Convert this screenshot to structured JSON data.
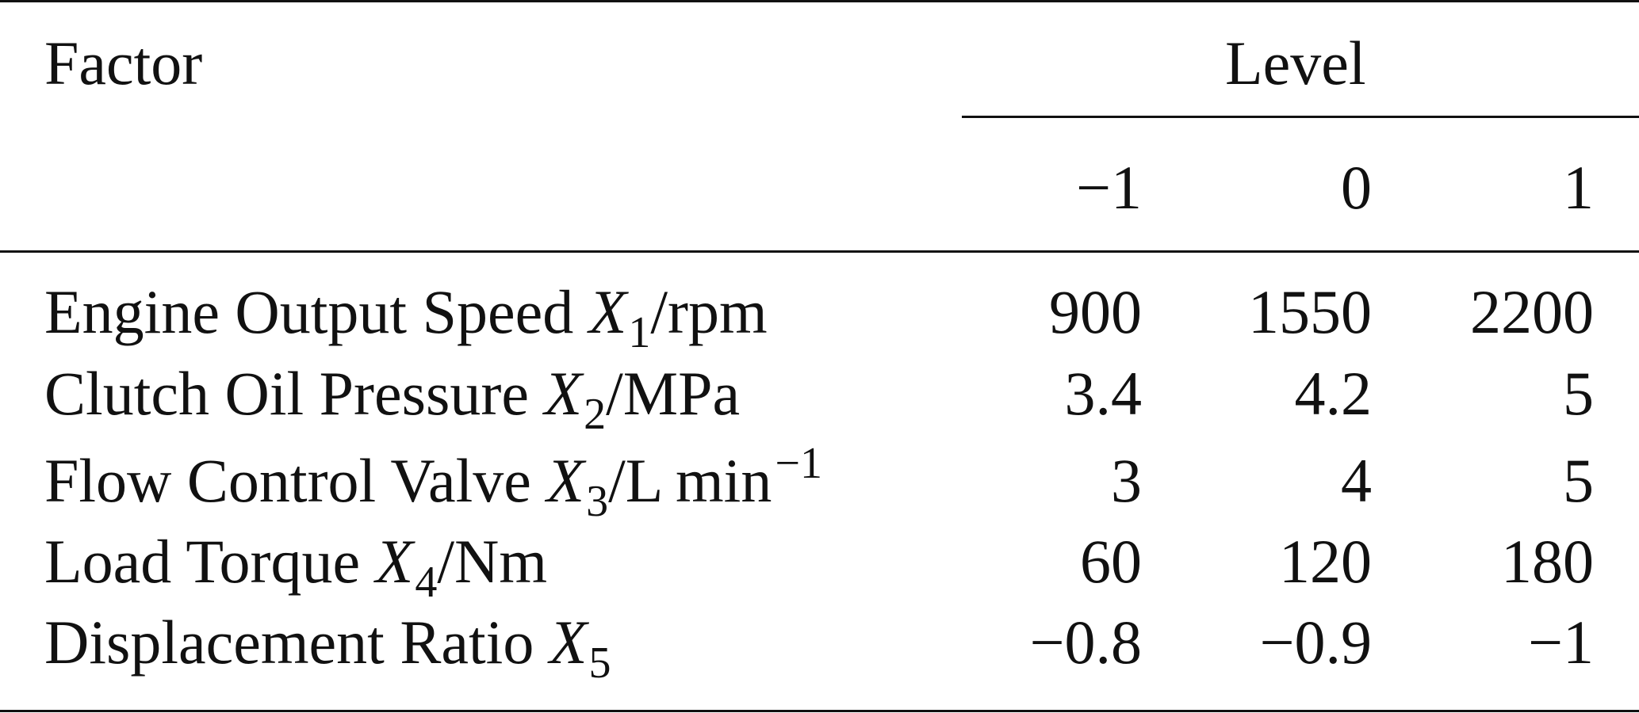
{
  "table": {
    "header": {
      "factor_label": "Factor",
      "level_label": "Level",
      "levels": [
        "−1",
        "0",
        "1"
      ]
    },
    "rows": [
      {
        "name": "Engine Output Speed",
        "var": "X",
        "sub": "1",
        "unit": "/rpm",
        "unit_sup": "",
        "values": [
          "900",
          "1550",
          "2200"
        ]
      },
      {
        "name": "Clutch Oil Pressure",
        "var": "X",
        "sub": "2",
        "unit": "/MPa",
        "unit_sup": "",
        "values": [
          "3.4",
          "4.2",
          "5"
        ]
      },
      {
        "name": "Flow Control Valve",
        "var": "X",
        "sub": "3",
        "unit": "/L min",
        "unit_sup": "−1",
        "values": [
          "3",
          "4",
          "5"
        ]
      },
      {
        "name": "Load Torque",
        "var": "X",
        "sub": "4",
        "unit": "/Nm",
        "unit_sup": "",
        "values": [
          "60",
          "120",
          "180"
        ]
      },
      {
        "name": "Displacement Ratio",
        "var": "X",
        "sub": "5",
        "unit": "",
        "unit_sup": "",
        "values": [
          "−0.8",
          "−0.9",
          "−1"
        ]
      }
    ]
  }
}
